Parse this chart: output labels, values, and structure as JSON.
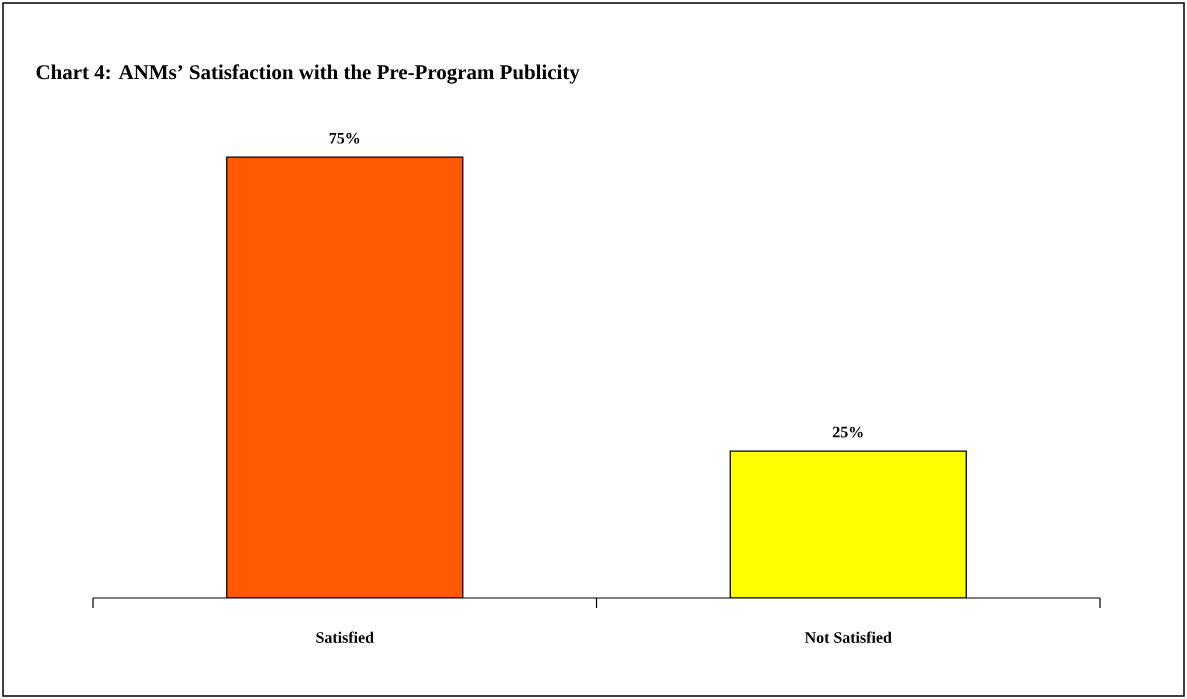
{
  "chart_data": {
    "type": "bar",
    "title": "Chart 4: ANMs’ Satisfaction with the Pre-Program Publicity",
    "categories": [
      "Satisfied",
      "Not Satisfied"
    ],
    "values": [
      75,
      25
    ],
    "colors": [
      "#ff5a00",
      "#ffff00"
    ],
    "value_labels": [
      "75%",
      "25%"
    ]
  }
}
